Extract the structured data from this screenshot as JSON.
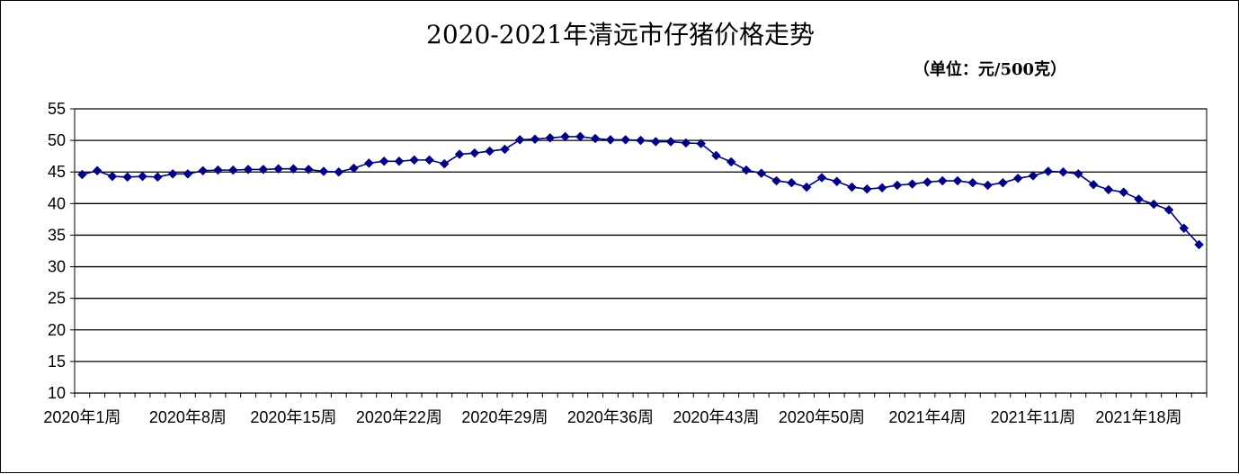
{
  "chart_data": {
    "type": "line",
    "title": "2020-2021年清远市仔猪价格走势",
    "subtitle": "（单位：元/500克）",
    "xlabel": "",
    "ylabel": "",
    "ylim": [
      10,
      55
    ],
    "y_ticks": [
      55,
      50,
      45,
      40,
      35,
      30,
      25,
      20,
      15,
      10
    ],
    "grid": true,
    "legend": "none",
    "x_tick_labels": [
      "2020年1周",
      "2020年8周",
      "2020年15周",
      "2020年22周",
      "2020年29周",
      "2020年36周",
      "2020年43周",
      "2020年50周",
      "2021年4周",
      "2021年11周",
      "2021年18周"
    ],
    "x_tick_every": 7,
    "series": [
      {
        "color": "#000080",
        "marker": "diamond",
        "values": [
          44.6,
          45.2,
          44.3,
          44.2,
          44.3,
          44.2,
          44.7,
          44.7,
          45.2,
          45.3,
          45.3,
          45.4,
          45.4,
          45.5,
          45.5,
          45.4,
          45.1,
          45.0,
          45.6,
          46.4,
          46.7,
          46.7,
          46.9,
          46.9,
          46.3,
          47.8,
          48.0,
          48.3,
          48.6,
          50.1,
          50.2,
          50.4,
          50.6,
          50.6,
          50.3,
          50.1,
          50.1,
          50.0,
          49.8,
          49.8,
          49.6,
          49.5,
          47.6,
          46.6,
          45.3,
          44.8,
          43.6,
          43.3,
          42.6,
          44.1,
          43.5,
          42.6,
          42.3,
          42.5,
          42.9,
          43.1,
          43.4,
          43.6,
          43.6,
          43.3,
          42.9,
          43.3,
          44.0,
          44.4,
          45.1,
          45.0,
          44.7,
          43.0,
          42.2,
          41.8,
          40.7,
          39.9,
          39.0,
          36.1,
          33.5
        ]
      }
    ]
  }
}
